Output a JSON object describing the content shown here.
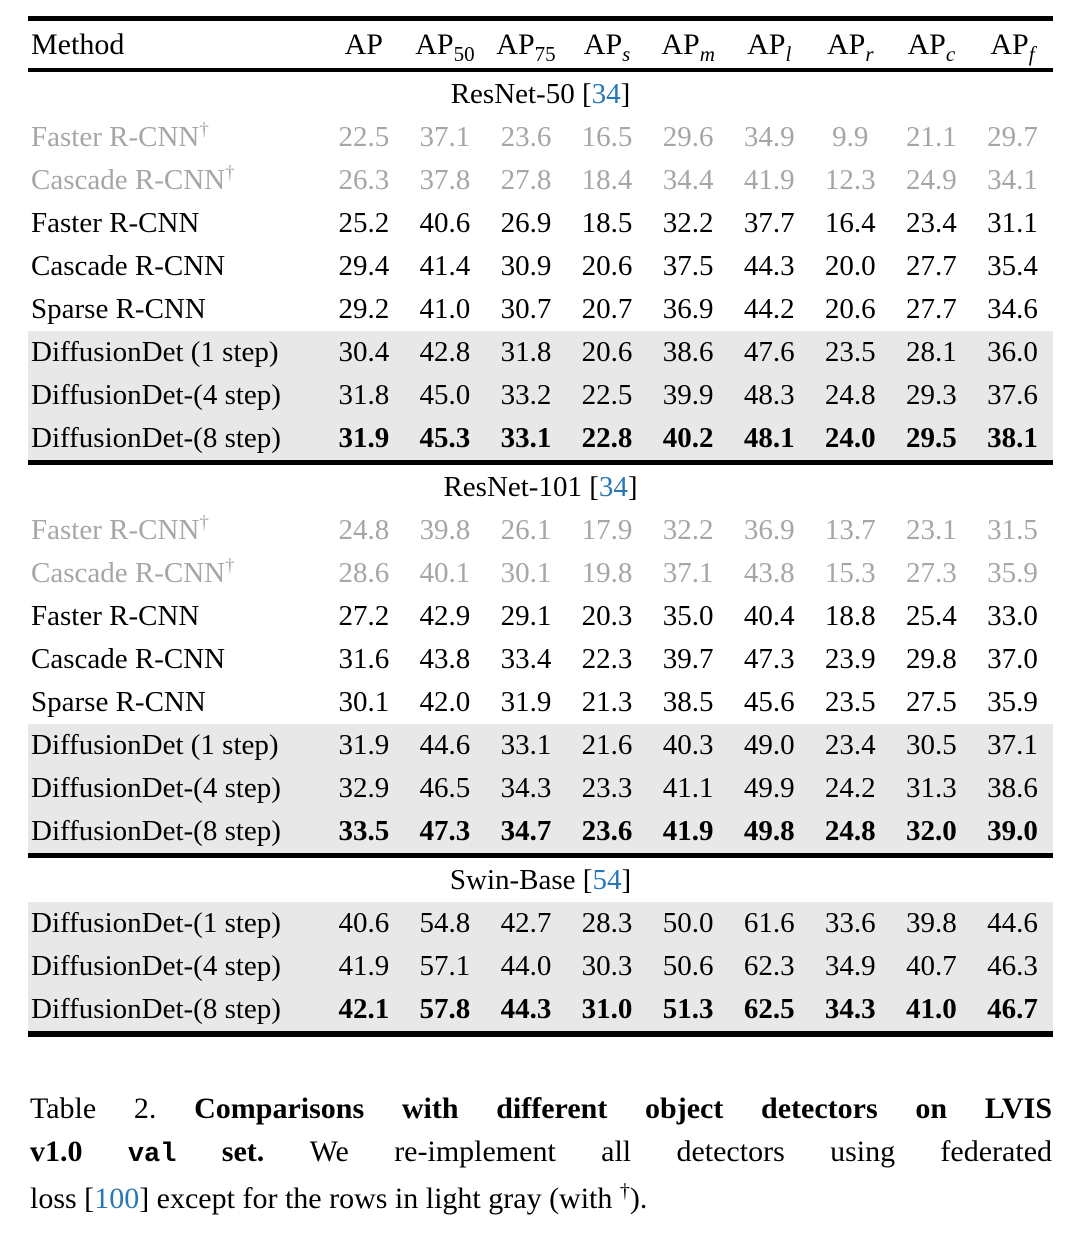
{
  "colors": {
    "citation_blue": "#2878b8",
    "muted_row_text": "#a6a6a6",
    "highlight_row_bg": "#e8e8e8",
    "rule_color": "#000000"
  },
  "table": {
    "columns": [
      {
        "label": "Method",
        "sub": "",
        "italic_sub": false
      },
      {
        "label": "AP",
        "sub": "",
        "italic_sub": false
      },
      {
        "label": "AP",
        "sub": "50",
        "italic_sub": false
      },
      {
        "label": "AP",
        "sub": "75",
        "italic_sub": false
      },
      {
        "label": "AP",
        "sub": "s",
        "italic_sub": true
      },
      {
        "label": "AP",
        "sub": "m",
        "italic_sub": true
      },
      {
        "label": "AP",
        "sub": "l",
        "italic_sub": true
      },
      {
        "label": "AP",
        "sub": "r",
        "italic_sub": true
      },
      {
        "label": "AP",
        "sub": "c",
        "italic_sub": true
      },
      {
        "label": "AP",
        "sub": "f",
        "italic_sub": true
      }
    ],
    "sections": [
      {
        "backbone": "ResNet-50",
        "citation": "34",
        "rows": [
          {
            "method": "Faster R-CNN",
            "dagger": true,
            "muted": true,
            "highlight": false,
            "bold": false,
            "values": [
              "22.5",
              "37.1",
              "23.6",
              "16.5",
              "29.6",
              "34.9",
              "9.9",
              "21.1",
              "29.7"
            ]
          },
          {
            "method": "Cascade R-CNN",
            "dagger": true,
            "muted": true,
            "highlight": false,
            "bold": false,
            "values": [
              "26.3",
              "37.8",
              "27.8",
              "18.4",
              "34.4",
              "41.9",
              "12.3",
              "24.9",
              "34.1"
            ]
          },
          {
            "method": "Faster R-CNN",
            "dagger": false,
            "muted": false,
            "highlight": false,
            "bold": false,
            "values": [
              "25.2",
              "40.6",
              "26.9",
              "18.5",
              "32.2",
              "37.7",
              "16.4",
              "23.4",
              "31.1"
            ]
          },
          {
            "method": "Cascade R-CNN",
            "dagger": false,
            "muted": false,
            "highlight": false,
            "bold": false,
            "values": [
              "29.4",
              "41.4",
              "30.9",
              "20.6",
              "37.5",
              "44.3",
              "20.0",
              "27.7",
              "35.4"
            ]
          },
          {
            "method": "Sparse R-CNN",
            "dagger": false,
            "muted": false,
            "highlight": false,
            "bold": false,
            "values": [
              "29.2",
              "41.0",
              "30.7",
              "20.7",
              "36.9",
              "44.2",
              "20.6",
              "27.7",
              "34.6"
            ]
          },
          {
            "method": "DiffusionDet (1 step)",
            "dagger": false,
            "muted": false,
            "highlight": true,
            "bold": false,
            "values": [
              "30.4",
              "42.8",
              "31.8",
              "20.6",
              "38.6",
              "47.6",
              "23.5",
              "28.1",
              "36.0"
            ]
          },
          {
            "method": "DiffusionDet-(4 step)",
            "dagger": false,
            "muted": false,
            "highlight": true,
            "bold": false,
            "values": [
              "31.8",
              "45.0",
              "33.2",
              "22.5",
              "39.9",
              "48.3",
              "24.8",
              "29.3",
              "37.6"
            ]
          },
          {
            "method": "DiffusionDet-(8 step)",
            "dagger": false,
            "muted": false,
            "highlight": true,
            "bold": true,
            "values": [
              "31.9",
              "45.3",
              "33.1",
              "22.8",
              "40.2",
              "48.1",
              "24.0",
              "29.5",
              "38.1"
            ]
          }
        ]
      },
      {
        "backbone": "ResNet-101",
        "citation": "34",
        "rows": [
          {
            "method": "Faster R-CNN",
            "dagger": true,
            "muted": true,
            "highlight": false,
            "bold": false,
            "values": [
              "24.8",
              "39.8",
              "26.1",
              "17.9",
              "32.2",
              "36.9",
              "13.7",
              "23.1",
              "31.5"
            ]
          },
          {
            "method": "Cascade R-CNN",
            "dagger": true,
            "muted": true,
            "highlight": false,
            "bold": false,
            "values": [
              "28.6",
              "40.1",
              "30.1",
              "19.8",
              "37.1",
              "43.8",
              "15.3",
              "27.3",
              "35.9"
            ]
          },
          {
            "method": "Faster R-CNN",
            "dagger": false,
            "muted": false,
            "highlight": false,
            "bold": false,
            "values": [
              "27.2",
              "42.9",
              "29.1",
              "20.3",
              "35.0",
              "40.4",
              "18.8",
              "25.4",
              "33.0"
            ]
          },
          {
            "method": "Cascade R-CNN",
            "dagger": false,
            "muted": false,
            "highlight": false,
            "bold": false,
            "values": [
              "31.6",
              "43.8",
              "33.4",
              "22.3",
              "39.7",
              "47.3",
              "23.9",
              "29.8",
              "37.0"
            ]
          },
          {
            "method": "Sparse R-CNN",
            "dagger": false,
            "muted": false,
            "highlight": false,
            "bold": false,
            "values": [
              "30.1",
              "42.0",
              "31.9",
              "21.3",
              "38.5",
              "45.6",
              "23.5",
              "27.5",
              "35.9"
            ]
          },
          {
            "method": "DiffusionDet (1 step)",
            "dagger": false,
            "muted": false,
            "highlight": true,
            "bold": false,
            "values": [
              "31.9",
              "44.6",
              "33.1",
              "21.6",
              "40.3",
              "49.0",
              "23.4",
              "30.5",
              "37.1"
            ]
          },
          {
            "method": "DiffusionDet-(4 step)",
            "dagger": false,
            "muted": false,
            "highlight": true,
            "bold": false,
            "values": [
              "32.9",
              "46.5",
              "34.3",
              "23.3",
              "41.1",
              "49.9",
              "24.2",
              "31.3",
              "38.6"
            ]
          },
          {
            "method": "DiffusionDet-(8 step)",
            "dagger": false,
            "muted": false,
            "highlight": true,
            "bold": true,
            "values": [
              "33.5",
              "47.3",
              "34.7",
              "23.6",
              "41.9",
              "49.8",
              "24.8",
              "32.0",
              "39.0"
            ]
          }
        ]
      },
      {
        "backbone": "Swin-Base",
        "citation": "54",
        "rows": [
          {
            "method": "DiffusionDet-(1 step)",
            "dagger": false,
            "muted": false,
            "highlight": true,
            "bold": false,
            "values": [
              "40.6",
              "54.8",
              "42.7",
              "28.3",
              "50.0",
              "61.6",
              "33.6",
              "39.8",
              "44.6"
            ]
          },
          {
            "method": "DiffusionDet-(4 step)",
            "dagger": false,
            "muted": false,
            "highlight": true,
            "bold": false,
            "values": [
              "41.9",
              "57.1",
              "44.0",
              "30.3",
              "50.6",
              "62.3",
              "34.9",
              "40.7",
              "46.3"
            ]
          },
          {
            "method": "DiffusionDet-(8 step)",
            "dagger": false,
            "muted": false,
            "highlight": true,
            "bold": true,
            "values": [
              "42.1",
              "57.8",
              "44.3",
              "31.0",
              "51.3",
              "62.5",
              "34.3",
              "41.0",
              "46.7"
            ]
          }
        ]
      }
    ]
  },
  "caption": {
    "lines": [
      [
        {
          "text": "Table 2. ",
          "style": "regular"
        },
        {
          "text": "Comparisons with different object detectors on LVIS",
          "style": "bold"
        }
      ],
      [
        {
          "text": "v1.0 ",
          "style": "bold"
        },
        {
          "text": "val",
          "style": "bold_mono"
        },
        {
          "text": " set",
          "style": "bold"
        },
        {
          "text": ". ",
          "style": "bold"
        },
        {
          "text": " We re-implement all detectors using federated",
          "style": "regular"
        }
      ],
      [
        {
          "text": "loss [",
          "style": "regular"
        },
        {
          "text": "100",
          "style": "citation"
        },
        {
          "text": "] except for the rows in light gray (with ",
          "style": "regular"
        },
        {
          "text": "†",
          "style": "dagger"
        },
        {
          "text": ").",
          "style": "regular"
        }
      ]
    ]
  }
}
